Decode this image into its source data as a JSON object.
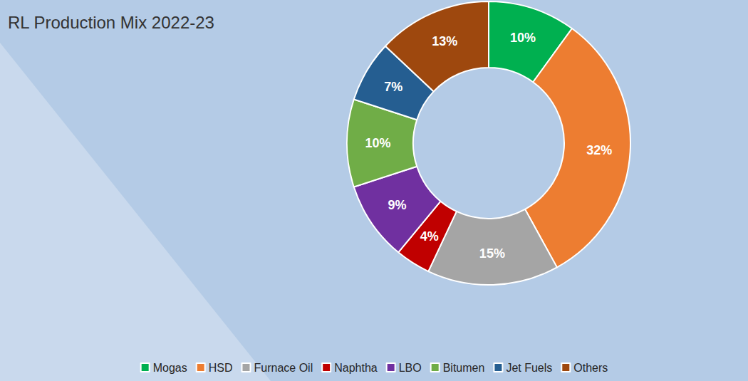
{
  "chart_data": {
    "type": "pie",
    "title": "RL Production Mix 2022-23",
    "categories": [
      "Mogas",
      "HSD",
      "Furnace Oil",
      "Naphtha",
      "LBO",
      "Bitumen",
      "Jet Fuels",
      "Others"
    ],
    "values": [
      10,
      32,
      15,
      4,
      9,
      10,
      7,
      13
    ],
    "value_labels": [
      "10%",
      "32%",
      "15%",
      "4%",
      "9%",
      "10%",
      "7%",
      "13%"
    ],
    "colors": [
      "#00b050",
      "#ed7d31",
      "#a5a5a5",
      "#c00000",
      "#7030a0",
      "#70ad47",
      "#255e91",
      "#9e480e"
    ],
    "data_labels": true,
    "legend": "bottom"
  }
}
